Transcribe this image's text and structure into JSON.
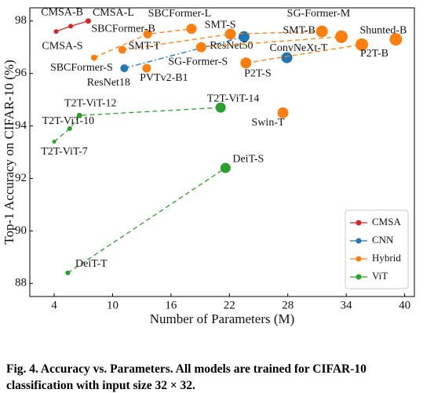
{
  "chart_data": {
    "type": "scatter",
    "xlabel": "Number of Parameters (M)",
    "ylabel": "Top-1 Accuracy on CIFAR-10 (%)",
    "xlim": [
      1.5,
      41
    ],
    "ylim": [
      87.5,
      98.5
    ],
    "xticks": [
      4,
      10,
      16,
      22,
      28,
      34,
      40
    ],
    "yticks": [
      88,
      90,
      92,
      94,
      96,
      98
    ],
    "legend": "lower right",
    "series": [
      {
        "name": "CMSA",
        "color": "#d62728",
        "linestyle": "solid",
        "labels": [
          "CMSA-S",
          "CMSA-B",
          "CMSA-L"
        ],
        "x": [
          4.2,
          5.7,
          7.5
        ],
        "values": [
          97.6,
          97.8,
          98.0
        ],
        "lines": [
          [
            0,
            1,
            2
          ]
        ]
      },
      {
        "name": "CNN",
        "color": "#1f77b4",
        "linestyle": "dashdot",
        "labels": [
          "ResNet18",
          "ResNet50",
          "ConvNeXt-T"
        ],
        "x": [
          11.2,
          23.5,
          27.9
        ],
        "values": [
          96.2,
          97.4,
          96.6
        ],
        "lines": [
          [
            0,
            1
          ]
        ]
      },
      {
        "name": "Hybrid",
        "color": "#ff7f0e",
        "linestyle": "dashed",
        "labels": [
          "SBCFormer-S",
          "SMT-T",
          "SBCFormer-B",
          "PVTv2-B1",
          "SBCFormer-L",
          "SG-Former-S",
          "SMT-S",
          "P2T-S",
          "SMT-B",
          "SG-Former-M",
          "P2T-B",
          "Shunted-B",
          "Swin-T"
        ],
        "x": [
          8.1,
          11.0,
          13.6,
          13.5,
          18.1,
          19.1,
          22.1,
          23.7,
          31.5,
          33.5,
          35.6,
          39.1,
          27.5
        ],
        "values": [
          96.6,
          96.9,
          97.5,
          96.2,
          97.7,
          97.0,
          97.5,
          96.4,
          97.6,
          97.4,
          97.1,
          97.3,
          94.5
        ],
        "lines": [
          [
            0,
            2,
            4
          ],
          [
            1,
            6,
            8
          ],
          [
            5,
            9
          ],
          [
            7,
            10
          ]
        ]
      },
      {
        "name": "ViT",
        "color": "#2ca02c",
        "linestyle": "dashed",
        "labels": [
          "T2T-ViT-7",
          "T2T-ViT-10",
          "T2T-ViT-12",
          "T2T-ViT-14",
          "DeiT-T",
          "DeiT-S"
        ],
        "x": [
          4.0,
          5.6,
          6.6,
          21.1,
          5.4,
          21.6
        ],
        "values": [
          93.4,
          93.9,
          94.4,
          94.7,
          88.4,
          92.4
        ],
        "lines": [
          [
            0,
            1,
            2,
            3
          ],
          [
            4,
            5
          ]
        ]
      }
    ]
  },
  "caption": {
    "line1": "Fig. 4. Accuracy vs.  Parameters.  All models are trained for CIFAR-10",
    "line2": "classification with input size 32 × 32."
  }
}
